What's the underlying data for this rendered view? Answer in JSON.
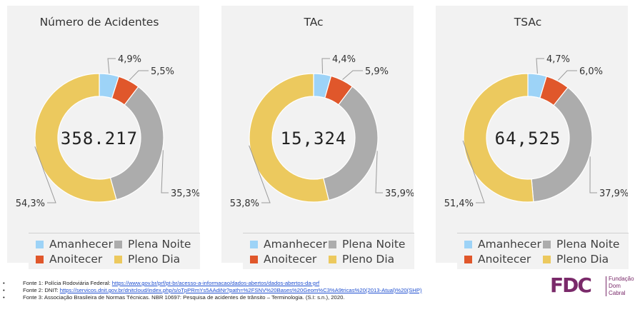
{
  "colors": {
    "Amanhecer": "#9dd3f7",
    "Anoitecer": "#e0572b",
    "Plena Noite": "#acacac",
    "Pleno Dia": "#ecc95e",
    "panel_bg": "#f2f2f2",
    "text": "#333333",
    "brand": "#7a2a6a"
  },
  "chart_data": [
    {
      "type": "pie",
      "variant": "donut",
      "title": "Número de Acidentes",
      "center_value": "358.217",
      "categories": [
        "Amanhecer",
        "Anoitecer",
        "Plena Noite",
        "Pleno Dia"
      ],
      "values": [
        4.9,
        5.5,
        35.3,
        54.3
      ],
      "value_labels": [
        "4,9%",
        "5,5%",
        "35,3%",
        "54,3%"
      ]
    },
    {
      "type": "pie",
      "variant": "donut",
      "title": "TAc",
      "center_value": "15,324",
      "categories": [
        "Amanhecer",
        "Anoitecer",
        "Plena Noite",
        "Pleno Dia"
      ],
      "values": [
        4.4,
        5.9,
        35.9,
        53.8
      ],
      "value_labels": [
        "4,4%",
        "5,9%",
        "35,9%",
        "53,8%"
      ]
    },
    {
      "type": "pie",
      "variant": "donut",
      "title": "TSAc",
      "center_value": "64,525",
      "categories": [
        "Amanhecer",
        "Anoitecer",
        "Plena Noite",
        "Pleno Dia"
      ],
      "values": [
        4.7,
        6.0,
        37.9,
        51.4
      ],
      "value_labels": [
        "4,7%",
        "6,0%",
        "37,9%",
        "51,4%"
      ]
    }
  ],
  "legend": {
    "items": [
      "Amanhecer",
      "Plena Noite",
      "Anoitecer",
      "Pleno Dia"
    ]
  },
  "footer": {
    "bullet": "•",
    "sources": [
      {
        "prefix": "Fonte 1: Polícia Rodoviária Federal: ",
        "link": "https://www.gov.br/prf/pt-br/acesso-a-informacao/dados-abertos/dados-abertos-da-prf",
        "suffix": ""
      },
      {
        "prefix": "Fonte 2: DNIT: ",
        "link": "https://servicos.dnit.gov.br/dnitcloud/index.php/s/oTpPRmYs5AAdiNr?path=%2FSNV%20Bases%20Geom%C3%A9tricas%20(2013-Atual)%20(SHP)",
        "suffix": ""
      },
      {
        "prefix": "Fonte 3: Associação Brasileira de Normas Técnicas. NBR 10697: Pesquisa de acidentes de trânsito – Terminologia. (S.I: s.n.), 2020.",
        "link": "",
        "suffix": ""
      }
    ]
  },
  "logo": {
    "mark": "FDC",
    "line1": "Fundação",
    "line2": "Dom",
    "line3": "Cabral"
  }
}
